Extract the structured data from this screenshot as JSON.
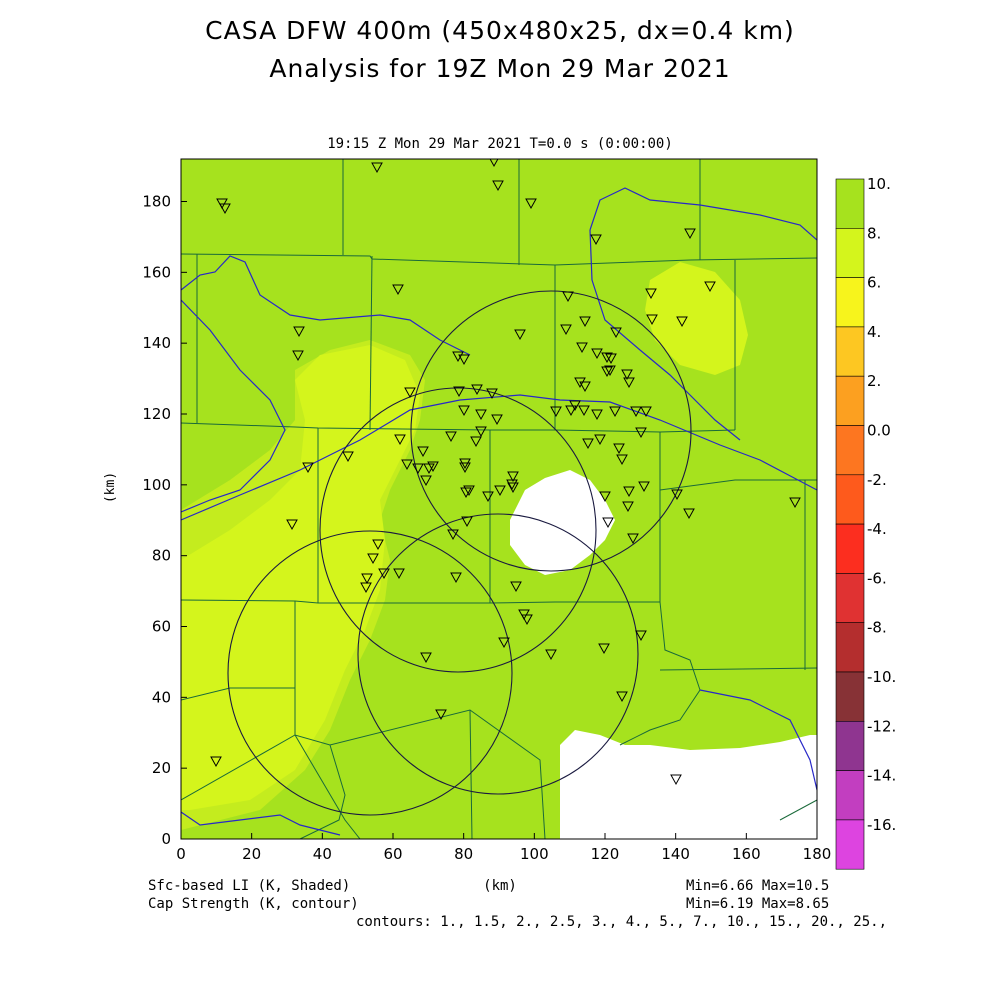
{
  "title_line1": "CASA DFW 400m (450x480x25, dx=0.4 km)",
  "title_line2": "Analysis for 19Z Mon 29 Mar 2021",
  "subtitle": "19:15 Z Mon 29 Mar 2021    T=0.0 s (0:00:00)",
  "x_axis": {
    "label": "(km)",
    "ticks": [
      "0",
      "20",
      "40",
      "60",
      "80",
      "100",
      "120",
      "140",
      "160",
      "180"
    ]
  },
  "y_axis": {
    "label": "(km)",
    "ticks": [
      "0",
      "20",
      "40",
      "60",
      "80",
      "100",
      "120",
      "140",
      "160",
      "180"
    ]
  },
  "shaded_label": "Sfc-based LI (K, Shaded)",
  "contour_label": "Cap Strength (K, contour)",
  "shaded_stats": "Min=6.66 Max=10.5",
  "contour_stats": "Min=6.19 Max=8.65",
  "contour_levels": "contours: 1., 1.5, 2., 2.5, 3., 4., 5., 7., 10., 15., 20., 25.,",
  "colorbar": {
    "levels": [
      "10.",
      "8.",
      "6.",
      "4.",
      "2.",
      "0.0",
      "-2.",
      "-4.",
      "-6.",
      "-8.",
      "-10.",
      "-12.",
      "-14.",
      "-16."
    ],
    "colors": [
      "#a6e21e",
      "#d4f51c",
      "#f7f41c",
      "#fdc722",
      "#fca020",
      "#fd7620",
      "#fe5a1c",
      "#fc2e1f",
      "#e03232",
      "#b42e2e",
      "#873236",
      "#8f3590",
      "#c23ec0",
      "#dd44e0"
    ]
  },
  "field_colors": {
    "base": "#a6e21e",
    "mid": "#c4ec1e",
    "light": "#d4f51c",
    "missing": "#ffffff",
    "county_lines": "#1a6a3a",
    "contour": "#1a1a40",
    "rivers": "#2828c8"
  }
}
